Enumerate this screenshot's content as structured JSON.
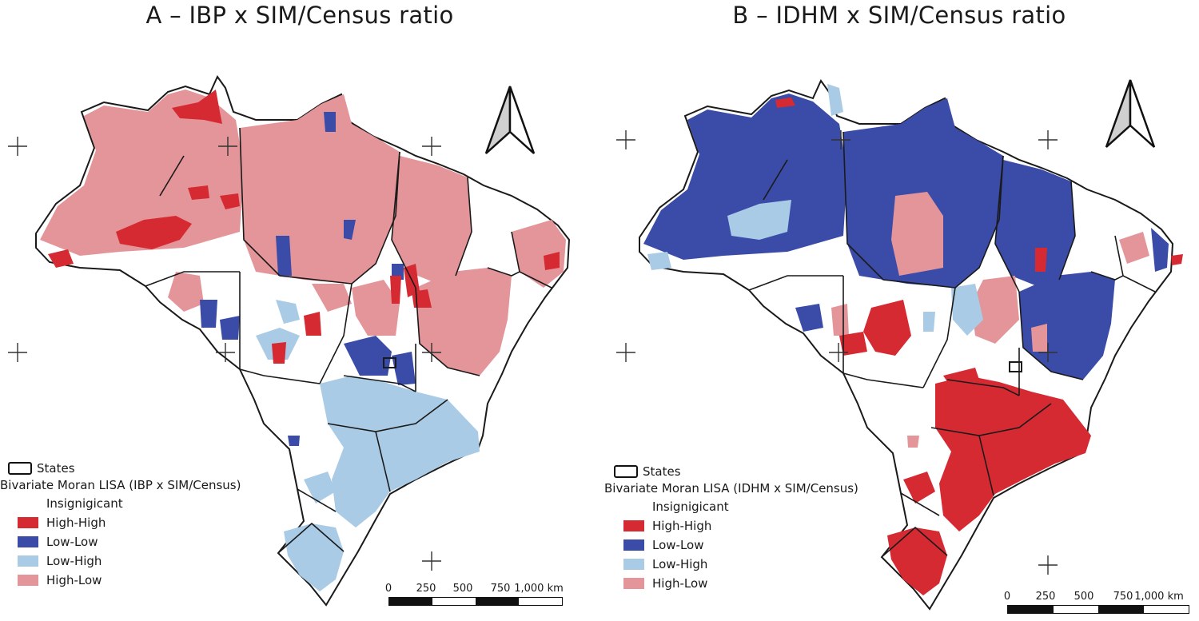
{
  "colors": {
    "high_high": "#d62a33",
    "low_low": "#3a4ba8",
    "low_high": "#a9cbe6",
    "high_low": "#e3959a",
    "insignificant": "#ffffff",
    "state_border": "#1a1a1a"
  },
  "icons": {
    "north_arrow": "north-arrow-icon",
    "graticule": "plus-cross-icon"
  },
  "panels": [
    {
      "id": "A",
      "title": "A – IBP x SIM/Census ratio",
      "legend": {
        "states_label": "States",
        "title": "Bivariate Moran LISA (IBP x SIM/Census)",
        "classes": [
          {
            "label": "Insignigicant",
            "key": "insignificant"
          },
          {
            "label": "High-High",
            "key": "high_high"
          },
          {
            "label": "Low-Low",
            "key": "low_low"
          },
          {
            "label": "Low-High",
            "key": "low_high"
          },
          {
            "label": "High-Low",
            "key": "high_low"
          }
        ]
      },
      "scale": {
        "labels": [
          "0",
          "250",
          "500",
          "750",
          "1,000 km"
        ]
      }
    },
    {
      "id": "B",
      "title": "B – IDHM x SIM/Census ratio",
      "legend": {
        "states_label": "States",
        "title": "Bivariate Moran LISA (IDHM x SIM/Census)",
        "classes": [
          {
            "label": "Insignigicant",
            "key": "insignificant"
          },
          {
            "label": "High-High",
            "key": "high_high"
          },
          {
            "label": "Low-Low",
            "key": "low_low"
          },
          {
            "label": "Low-High",
            "key": "low_high"
          },
          {
            "label": "High-Low",
            "key": "high_low"
          }
        ]
      },
      "scale": {
        "labels": [
          "0",
          "250",
          "500",
          "750",
          "1,000 km"
        ]
      }
    }
  ]
}
